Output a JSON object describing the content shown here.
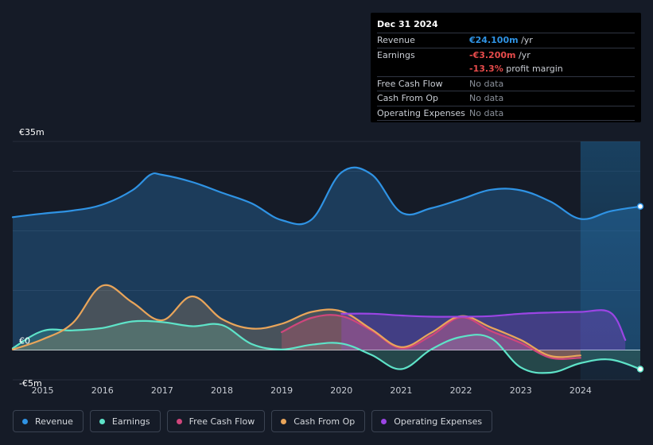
{
  "tooltip": {
    "date": "Dec 31 2024",
    "revenue_label": "Revenue",
    "revenue_value": "€24.100m",
    "revenue_unit": " /yr",
    "earnings_label": "Earnings",
    "earnings_value": "-€3.200m",
    "earnings_unit": " /yr",
    "margin_value": "-13.3%",
    "margin_text": " profit margin",
    "fcf_label": "Free Cash Flow",
    "fcf_value": "No data",
    "cfo_label": "Cash From Op",
    "cfo_value": "No data",
    "opex_label": "Operating Expenses",
    "opex_value": "No data"
  },
  "legend": [
    {
      "label": "Revenue",
      "color": "#2f93e4"
    },
    {
      "label": "Earnings",
      "color": "#5ee3c8"
    },
    {
      "label": "Free Cash Flow",
      "color": "#d0467c"
    },
    {
      "label": "Cash From Op",
      "color": "#e9a55a"
    },
    {
      "label": "Operating Expenses",
      "color": "#9b45e4"
    }
  ],
  "chart_data": {
    "type": "area",
    "y_tick_labels": [
      "€35m",
      "€0",
      "-€5m"
    ],
    "ylim": [
      -5,
      35
    ],
    "xlim": [
      2014.5,
      2025.0
    ],
    "x_ticks": [
      2015,
      2016,
      2017,
      2018,
      2019,
      2020,
      2021,
      2022,
      2023,
      2024
    ],
    "x_tick_labels": [
      "2015",
      "2016",
      "2017",
      "2018",
      "2019",
      "2020",
      "2021",
      "2022",
      "2023",
      "2024"
    ],
    "forecast_start": 2024.0,
    "series": [
      {
        "name": "Revenue",
        "color": "#2f93e4",
        "x": [
          2014.5,
          2015.0,
          2015.5,
          2016.0,
          2016.5,
          2016.8,
          2017.0,
          2017.5,
          2018.0,
          2018.5,
          2019.0,
          2019.5,
          2020.0,
          2020.5,
          2021.0,
          2021.5,
          2022.0,
          2022.5,
          2023.0,
          2023.5,
          2024.0,
          2024.5,
          2025.0
        ],
        "y": [
          22.3,
          22.9,
          23.4,
          24.4,
          26.8,
          29.4,
          29.4,
          28.2,
          26.4,
          24.6,
          21.8,
          21.9,
          29.8,
          29.5,
          23.1,
          23.8,
          25.3,
          26.9,
          26.8,
          24.9,
          22.0,
          23.3,
          24.1
        ]
      },
      {
        "name": "Earnings",
        "color": "#5ee3c8",
        "x": [
          2014.5,
          2015.0,
          2015.5,
          2016.0,
          2016.5,
          2017.0,
          2017.5,
          2018.0,
          2018.5,
          2019.0,
          2019.5,
          2020.0,
          2020.5,
          2021.0,
          2021.5,
          2022.0,
          2022.5,
          2023.0,
          2023.5,
          2024.0,
          2024.5,
          2025.0
        ],
        "y": [
          0.3,
          3.2,
          3.3,
          3.7,
          4.8,
          4.7,
          4.0,
          4.2,
          1.0,
          0.1,
          0.9,
          1.1,
          -0.8,
          -3.2,
          0.1,
          2.2,
          2.0,
          -2.9,
          -3.8,
          -2.2,
          -1.6,
          -3.2
        ]
      },
      {
        "name": "Free Cash Flow",
        "color": "#d0467c",
        "x": [
          2019.0,
          2019.5,
          2020.0,
          2020.5,
          2021.0,
          2021.5,
          2022.0,
          2022.5,
          2023.0,
          2023.5,
          2024.0
        ],
        "y": [
          3.0,
          5.4,
          5.7,
          3.3,
          0.3,
          2.4,
          5.5,
          3.2,
          1.2,
          -1.3,
          -1.3
        ]
      },
      {
        "name": "Cash From Op",
        "color": "#e9a55a",
        "x": [
          2014.5,
          2015.0,
          2015.5,
          2016.0,
          2016.5,
          2017.0,
          2017.5,
          2018.0,
          2018.5,
          2019.0,
          2019.5,
          2020.0,
          2020.5,
          2021.0,
          2021.5,
          2022.0,
          2022.5,
          2023.0,
          2023.5,
          2024.0
        ],
        "y": [
          0.1,
          1.8,
          4.5,
          10.8,
          8.0,
          5.0,
          9.0,
          5.2,
          3.6,
          4.4,
          6.4,
          6.5,
          3.5,
          0.5,
          2.9,
          5.7,
          3.8,
          1.7,
          -1.0,
          -0.9
        ]
      },
      {
        "name": "Operating Expenses",
        "color": "#9b45e4",
        "x": [
          2020.0,
          2020.5,
          2021.0,
          2021.5,
          2022.0,
          2022.5,
          2023.0,
          2023.5,
          2024.0,
          2024.5,
          2024.75
        ],
        "y": [
          6.1,
          6.1,
          5.8,
          5.6,
          5.6,
          5.7,
          6.1,
          6.3,
          6.4,
          6.3,
          1.7
        ]
      }
    ]
  }
}
